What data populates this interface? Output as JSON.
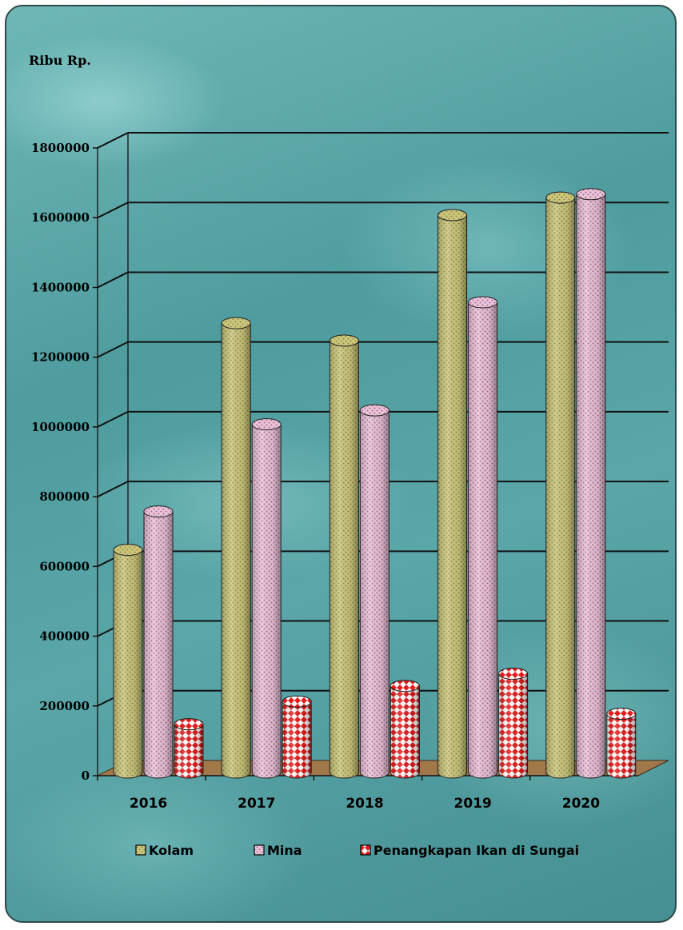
{
  "chart_data": {
    "type": "bar",
    "style": "3d-cylinder",
    "ylabel": "Ribu Rp.",
    "categories": [
      "2016",
      "2017",
      "2018",
      "2019",
      "2020"
    ],
    "ylim": [
      0,
      1800000
    ],
    "yticks": [
      "0",
      "200000",
      "400000",
      "600000",
      "800000",
      "1000000",
      "1200000",
      "1400000",
      "1600000",
      "1800000"
    ],
    "series": [
      {
        "name": "Kolam",
        "values": [
          620000,
          1270000,
          1220000,
          1580000,
          1630000
        ],
        "color": "#c8c27a"
      },
      {
        "name": "Mina",
        "values": [
          730000,
          980000,
          1020000,
          1330000,
          1640000
        ],
        "color": "#e6b8d2"
      },
      {
        "name": "Penangkapan Ikan di Sungai",
        "values": [
          120000,
          185000,
          230000,
          265000,
          150000
        ],
        "color": "#e02020"
      }
    ],
    "grid": true,
    "legend": "bottom"
  }
}
